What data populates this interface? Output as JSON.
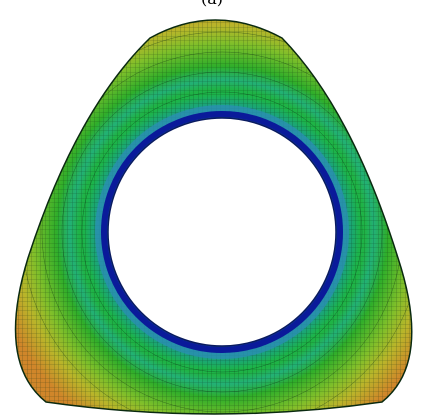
{
  "figure": {
    "label": "(a)"
  }
}
